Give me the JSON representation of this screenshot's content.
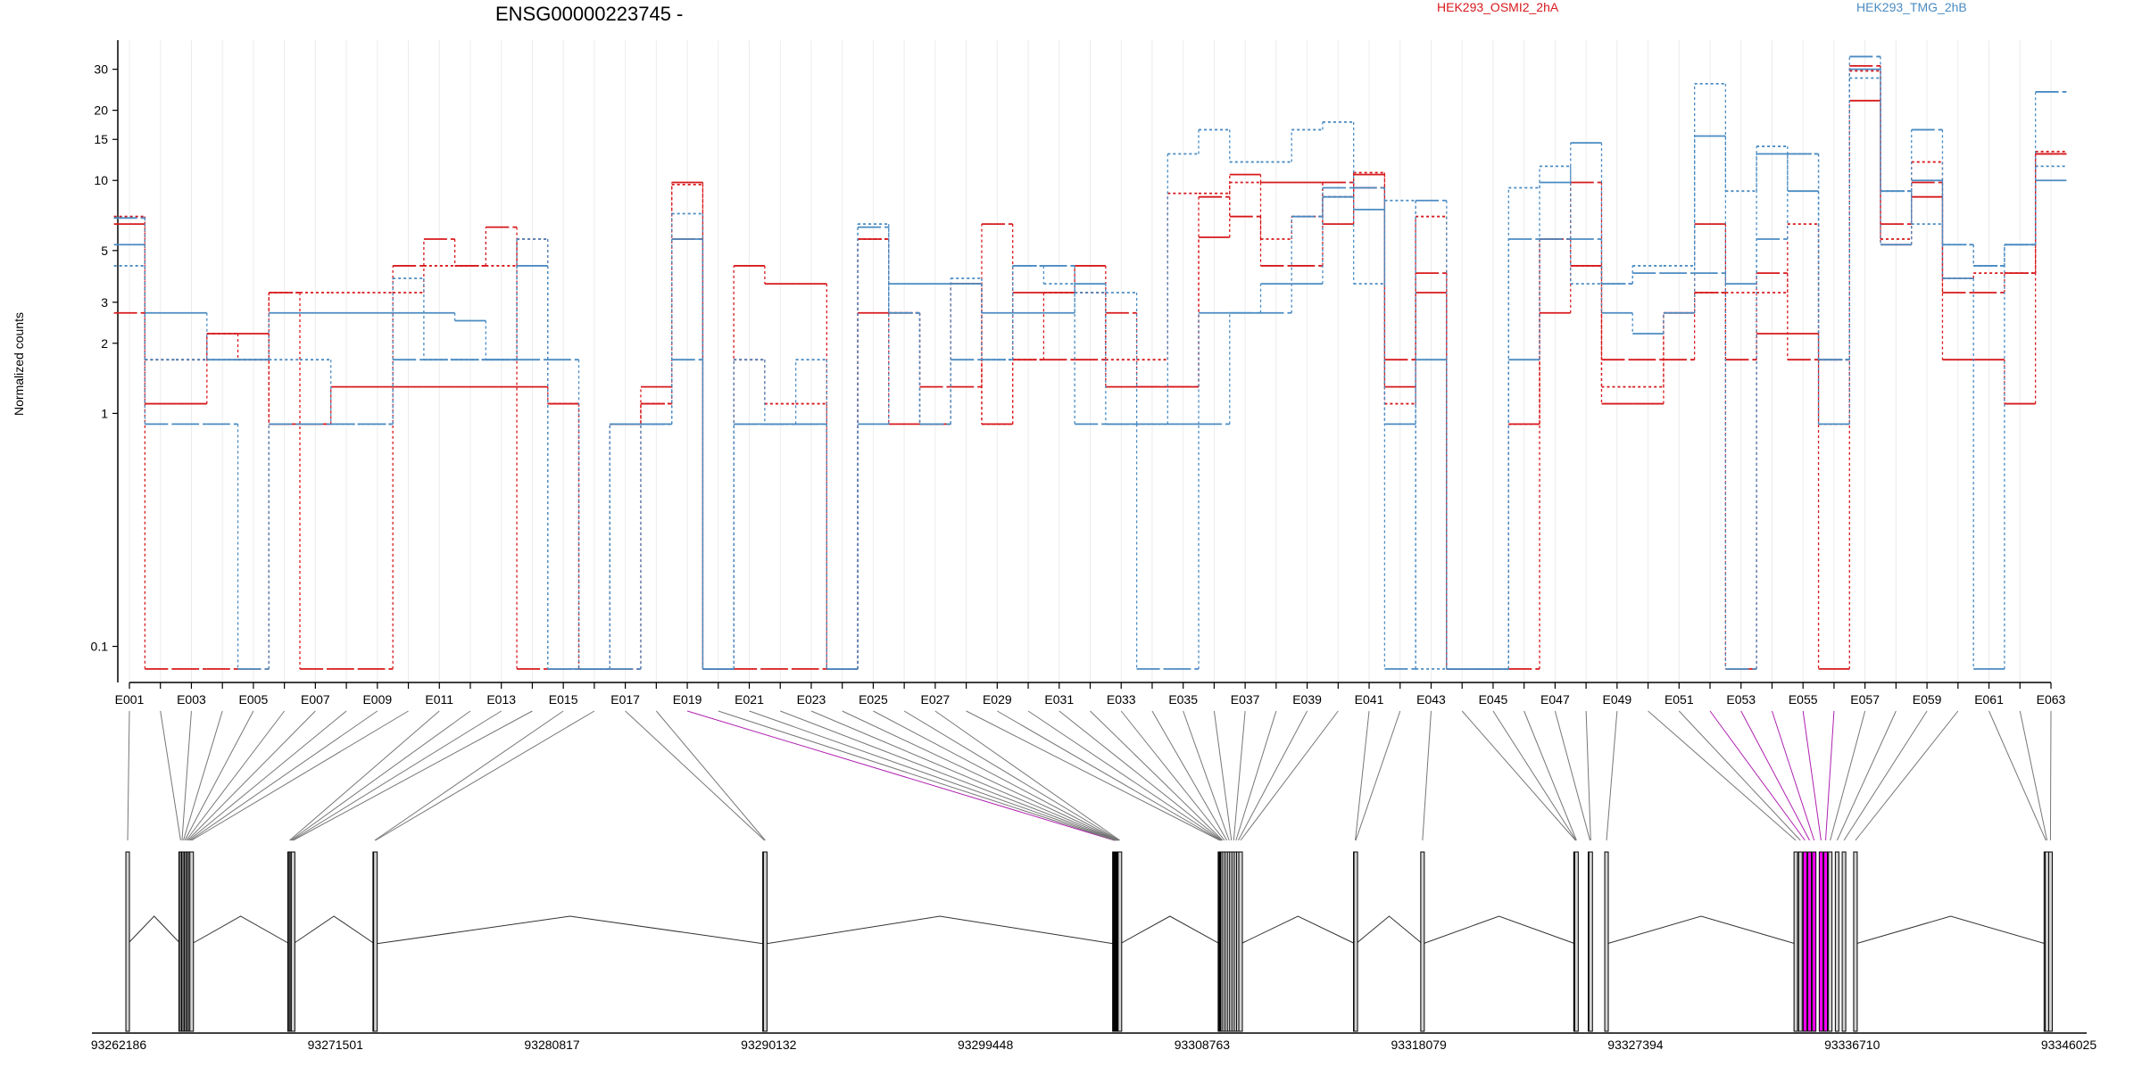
{
  "chart_data": {
    "type": "line",
    "title": "ENSG00000223745 -",
    "ylabel": "Normalized counts",
    "xlabel": "",
    "y_scale": "log",
    "ylim": [
      0.07,
      40
    ],
    "y_ticks": [
      0.1,
      1,
      2,
      3,
      5,
      10,
      15,
      20,
      30
    ],
    "y_tick_labels": [
      "0.1",
      "1",
      "2",
      "3",
      "5",
      "10",
      "15",
      "20",
      "30"
    ],
    "grid": true,
    "legend_placement": "top",
    "categories": [
      "E001",
      "E002",
      "E003",
      "E004",
      "E005",
      "E006",
      "E007",
      "E008",
      "E009",
      "E010",
      "E011",
      "E012",
      "E013",
      "E014",
      "E015",
      "E016",
      "E017",
      "E018",
      "E019",
      "E020",
      "E021",
      "E022",
      "E023",
      "E024",
      "E025",
      "E026",
      "E027",
      "E028",
      "E029",
      "E030",
      "E031",
      "E032",
      "E033",
      "E034",
      "E035",
      "E036",
      "E037",
      "E038",
      "E039",
      "E040",
      "E041",
      "E042",
      "E043",
      "E044",
      "E045",
      "E046",
      "E047",
      "E048",
      "E049",
      "E050",
      "E051",
      "E052",
      "E053",
      "E054",
      "E055",
      "E056",
      "E057",
      "E058",
      "E059",
      "E060",
      "E061",
      "E062",
      "E063"
    ],
    "x_tick_labels": [
      "E001",
      "E003",
      "E005",
      "E007",
      "E009",
      "E011",
      "E013",
      "E015",
      "E017",
      "E019",
      "E021",
      "E023",
      "E025",
      "E027",
      "E029",
      "E031",
      "E033",
      "E035",
      "E037",
      "E039",
      "E041",
      "E043",
      "E045",
      "E047",
      "E049",
      "E051",
      "E053",
      "E055",
      "E057",
      "E059",
      "E061",
      "E063"
    ],
    "series": [
      {
        "name": "HEK293_OSMI2_2hA",
        "color": "#d7191c",
        "dash": "solid",
        "values": [
          6.5,
          1.1,
          1.1,
          2.2,
          2.2,
          0.9,
          0.9,
          1.3,
          1.3,
          1.3,
          1.3,
          1.3,
          1.3,
          1.3,
          1.1,
          0.08,
          0.9,
          1.3,
          9.8,
          0.08,
          4.3,
          3.6,
          3.6,
          0.08,
          2.7,
          0.9,
          0.9,
          3.6,
          0.9,
          3.3,
          3.3,
          4.3,
          1.3,
          1.3,
          1.3,
          5.7,
          10.6,
          9.8,
          9.8,
          6.5,
          10.6,
          1.3,
          3.3,
          0.08,
          0.08,
          0.9,
          2.7,
          4.3,
          1.1,
          1.1,
          2.7,
          6.5,
          0.08,
          2.2,
          2.2,
          0.08,
          22.0,
          5.3,
          8.5,
          1.7,
          1.7,
          1.1,
          13.0
        ]
      },
      {
        "name": "HEK293_OSMI2_2hA",
        "color": "#d7191c",
        "dash": "dashed",
        "values": [
          2.7,
          0.08,
          0.08,
          0.08,
          0.08,
          3.3,
          0.08,
          0.08,
          0.08,
          4.3,
          5.6,
          4.3,
          6.3,
          0.08,
          0.08,
          0.08,
          0.08,
          1.1,
          5.6,
          0.08,
          0.08,
          0.08,
          0.08,
          0.08,
          5.6,
          2.7,
          1.3,
          1.3,
          6.5,
          1.7,
          1.7,
          1.7,
          2.7,
          1.3,
          1.3,
          8.5,
          7.0,
          4.3,
          4.3,
          9.8,
          9.3,
          1.7,
          4.0,
          0.08,
          0.08,
          0.08,
          5.6,
          9.8,
          1.7,
          1.7,
          1.7,
          3.3,
          1.7,
          4.0,
          1.7,
          1.7,
          31.0,
          6.5,
          9.8,
          3.3,
          3.3,
          4.0,
          13.0
        ]
      },
      {
        "name": "HEK293_OSMI2_2hA",
        "color": "#d7191c",
        "dash": "dotted",
        "values": [
          7.0,
          1.7,
          1.7,
          2.2,
          1.7,
          3.3,
          3.3,
          3.3,
          3.3,
          3.3,
          4.3,
          4.3,
          4.3,
          5.6,
          1.1,
          0.08,
          0.9,
          1.1,
          9.6,
          0.08,
          1.7,
          1.1,
          1.1,
          0.08,
          5.6,
          2.7,
          0.9,
          3.6,
          0.9,
          1.7,
          3.3,
          3.3,
          1.7,
          1.7,
          8.8,
          8.8,
          9.8,
          5.6,
          7.0,
          8.5,
          10.8,
          1.1,
          7.0,
          0.08,
          0.08,
          0.9,
          5.6,
          4.3,
          1.3,
          1.3,
          2.7,
          3.3,
          3.3,
          3.3,
          6.5,
          0.9,
          29.5,
          5.6,
          12.0,
          3.8,
          4.0,
          4.0,
          13.3
        ]
      },
      {
        "name": "HEK293_TMG_2hB",
        "color": "#4a8bc2",
        "dash": "solid",
        "values": [
          5.3,
          2.7,
          2.7,
          1.7,
          1.7,
          2.7,
          2.7,
          2.7,
          2.7,
          2.7,
          2.7,
          2.5,
          1.7,
          4.3,
          0.08,
          0.08,
          0.9,
          0.9,
          5.6,
          0.08,
          0.9,
          0.9,
          0.9,
          0.08,
          0.9,
          3.6,
          3.6,
          3.6,
          2.7,
          2.7,
          2.7,
          3.6,
          0.9,
          0.9,
          0.9,
          2.7,
          2.7,
          3.6,
          3.6,
          8.5,
          7.5,
          0.9,
          1.7,
          0.08,
          0.08,
          1.7,
          9.8,
          14.5,
          2.7,
          2.2,
          2.7,
          15.5,
          3.6,
          13.0,
          9.0,
          0.9,
          30.0,
          5.3,
          10.0,
          3.8,
          0.08,
          5.3,
          10.0
        ]
      },
      {
        "name": "HEK293_TMG_2hB",
        "color": "#4a8bc2",
        "dash": "dashed",
        "values": [
          6.9,
          0.9,
          0.9,
          0.9,
          0.08,
          0.9,
          0.9,
          0.9,
          0.9,
          1.7,
          1.7,
          1.7,
          1.7,
          1.7,
          1.7,
          0.08,
          0.08,
          0.9,
          1.7,
          0.08,
          0.9,
          0.9,
          0.9,
          0.08,
          6.3,
          2.7,
          0.9,
          1.7,
          1.7,
          4.3,
          4.3,
          0.9,
          0.9,
          0.08,
          0.08,
          0.9,
          2.7,
          2.7,
          7.0,
          9.3,
          9.3,
          0.08,
          8.2,
          0.08,
          0.08,
          5.6,
          5.6,
          5.6,
          3.6,
          4.0,
          4.0,
          4.0,
          0.08,
          5.6,
          13.0,
          1.7,
          34.0,
          9.0,
          16.5,
          5.3,
          4.3,
          5.3,
          24.0
        ]
      },
      {
        "name": "HEK293_TMG_2hB",
        "color": "#4a8bc2",
        "dash": "dotted",
        "values": [
          4.3,
          1.7,
          1.7,
          1.7,
          1.7,
          1.7,
          1.7,
          0.9,
          0.9,
          3.8,
          1.7,
          1.7,
          1.7,
          5.6,
          0.08,
          0.08,
          0.9,
          0.9,
          7.2,
          0.08,
          1.7,
          0.9,
          1.7,
          0.08,
          6.5,
          2.7,
          0.9,
          3.8,
          1.7,
          4.3,
          3.6,
          3.3,
          3.3,
          0.9,
          13.0,
          16.5,
          12.0,
          12.0,
          16.5,
          17.8,
          3.6,
          8.2,
          0.08,
          0.08,
          0.08,
          9.3,
          11.5,
          3.6,
          3.6,
          4.3,
          4.3,
          26.0,
          9.0,
          14.0,
          13.0,
          1.7,
          27.5,
          9.0,
          6.5,
          5.3,
          4.3,
          5.3,
          11.5
        ]
      }
    ],
    "legend": [
      {
        "label": "HEK293_OSMI2_2hA",
        "color": "#d7191c"
      },
      {
        "label": "HEK293_TMG_2hB",
        "color": "#4a8bc2"
      }
    ],
    "genomic_axis": {
      "ticks": [
        "93262186",
        "93271501",
        "93280817",
        "93290132",
        "93299448",
        "93308763",
        "93318079",
        "93327394",
        "93336710",
        "93346025"
      ],
      "range": [
        93261800,
        93346800
      ],
      "exon_positions": [
        93262190,
        93264500,
        93264560,
        93264620,
        93264680,
        93264740,
        93264800,
        93264860,
        93264920,
        93264980,
        93269250,
        93269300,
        93269350,
        93269400,
        93272960,
        93272990,
        93289950,
        93289980,
        93305200,
        93305230,
        93305260,
        93305290,
        93305320,
        93305350,
        93305380,
        93305410,
        93305440,
        93309800,
        93309830,
        93309860,
        93309890,
        93309920,
        93310000,
        93310100,
        93310200,
        93310300,
        93310400,
        93310500,
        93310600,
        93310700,
        93315700,
        93315720,
        93318630,
        93325300,
        93325320,
        93325340,
        93325930,
        93325960,
        93326650,
        93334900,
        93335100,
        93335300,
        93335500,
        93335700,
        93336000,
        93336200,
        93336400,
        93336700,
        93337000,
        93337500,
        93345800,
        93345850,
        93346000
      ],
      "highlighted_exons": [
        18,
        51,
        52,
        53,
        54,
        55
      ]
    }
  }
}
